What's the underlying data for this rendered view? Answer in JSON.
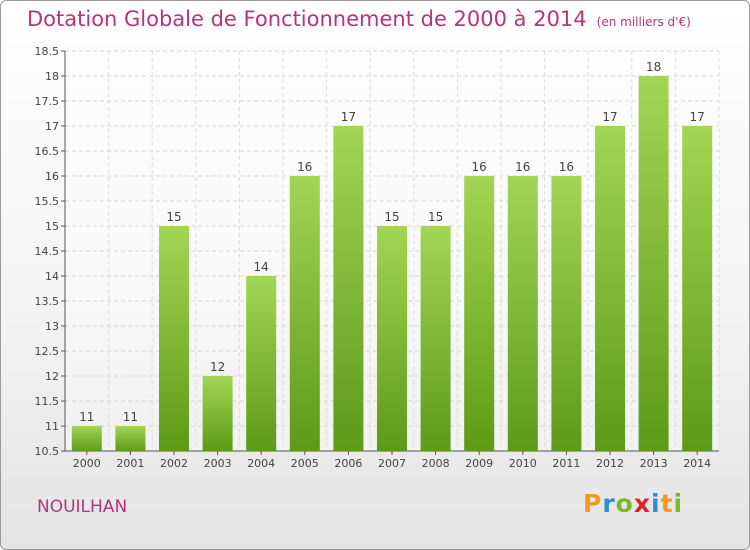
{
  "title": "Dotation Globale de Fonctionnement de 2000 à 2014",
  "unit": "(en milliers d'€)",
  "commune": "NOUILHAN",
  "logo": {
    "text": "Proxiti",
    "letters": [
      {
        "char": "P",
        "color": "#f29a1e"
      },
      {
        "char": "r",
        "color": "#2f8fd1"
      },
      {
        "char": "o",
        "color": "#7cba2d"
      },
      {
        "char": "x",
        "color": "#d9242b"
      },
      {
        "char": "i",
        "color": "#2f8fd1"
      },
      {
        "char": "t",
        "color": "#f29a1e"
      },
      {
        "char": "i",
        "color": "#7cba2d"
      }
    ]
  },
  "chart_data": {
    "type": "bar",
    "title": "Dotation Globale de Fonctionnement de 2000 à 2014",
    "categories": [
      "2000",
      "2001",
      "2002",
      "2003",
      "2004",
      "2005",
      "2006",
      "2007",
      "2008",
      "2009",
      "2010",
      "2011",
      "2012",
      "2013",
      "2014"
    ],
    "values": [
      11,
      11,
      15,
      12,
      14,
      16,
      17,
      15,
      15,
      16,
      16,
      16,
      17,
      18,
      17
    ],
    "xlabel": "",
    "ylabel": "",
    "ylim": [
      10.5,
      18.5
    ],
    "yticks": [
      "10.5",
      "11",
      "11.5",
      "12",
      "12.5",
      "13",
      "13.5",
      "14",
      "14.5",
      "15",
      "15.5",
      "16",
      "16.5",
      "17",
      "17.5",
      "18",
      "18.5"
    ],
    "grid": true,
    "bar_color": "#7cba2d"
  }
}
